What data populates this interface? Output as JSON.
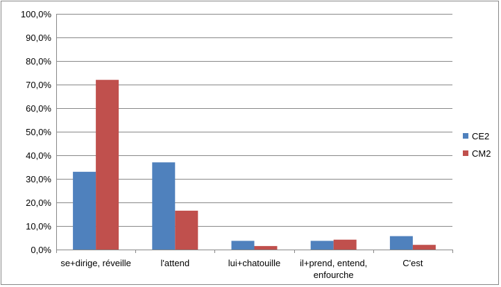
{
  "chart_data": {
    "type": "bar",
    "title": "",
    "xlabel": "",
    "ylabel": "",
    "categories": [
      [
        "se+dirige, réveille"
      ],
      [
        "l'attend"
      ],
      [
        "lui+chatouille"
      ],
      [
        "il+prend, entend,",
        "enfourche"
      ],
      [
        "C'est"
      ]
    ],
    "series": [
      {
        "name": "CE2",
        "color": "#4f81bd",
        "values": [
          33.0,
          37.0,
          3.7,
          3.7,
          5.7
        ]
      },
      {
        "name": "CM2",
        "color": "#c0504d",
        "values": [
          72.0,
          16.5,
          1.5,
          4.2,
          2.0
        ]
      }
    ],
    "ylim": [
      0,
      100
    ],
    "yticks": [
      "0,0%",
      "10,0%",
      "20,0%",
      "30,0%",
      "40,0%",
      "50,0%",
      "60,0%",
      "70,0%",
      "80,0%",
      "90,0%",
      "100,0%"
    ],
    "grid": true,
    "legend_position": "right"
  }
}
